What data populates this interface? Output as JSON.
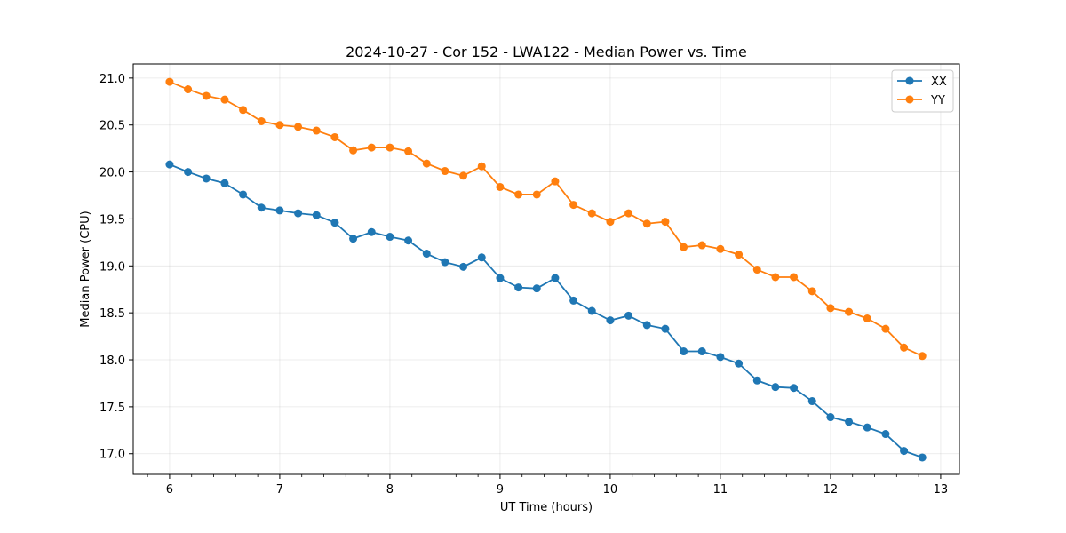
{
  "chart_data": {
    "type": "line",
    "title": "2024-10-27 - Cor 152 - LWA122 - Median Power vs. Time",
    "xlabel": "UT Time (hours)",
    "ylabel": "Median Power (CPU)",
    "xlim": [
      5.67,
      13.17
    ],
    "ylim": [
      16.78,
      21.15
    ],
    "xticks": [
      6,
      7,
      8,
      9,
      10,
      11,
      12,
      13
    ],
    "xtick_labels": [
      "6",
      "7",
      "8",
      "9",
      "10",
      "11",
      "12",
      "13"
    ],
    "yticks": [
      17.0,
      17.5,
      18.0,
      18.5,
      19.0,
      19.5,
      20.0,
      20.5,
      21.0
    ],
    "ytick_labels": [
      "17.0",
      "17.5",
      "18.0",
      "18.5",
      "19.0",
      "19.5",
      "20.0",
      "20.5",
      "21.0"
    ],
    "grid": true,
    "legend_position": "top-right",
    "x": [
      6.0,
      6.1667,
      6.3333,
      6.5,
      6.6667,
      6.8333,
      7.0,
      7.1667,
      7.3333,
      7.5,
      7.6667,
      7.8333,
      8.0,
      8.1667,
      8.3333,
      8.5,
      8.6667,
      8.8333,
      9.0,
      9.1667,
      9.3333,
      9.5,
      9.6667,
      9.8333,
      10.0,
      10.1667,
      10.3333,
      10.5,
      10.6667,
      10.8333,
      11.0,
      11.1667,
      11.3333,
      11.5,
      11.6667,
      11.8333,
      12.0,
      12.1667,
      12.3333,
      12.5,
      12.6667,
      12.8333
    ],
    "series": [
      {
        "name": "XX",
        "color": "#1f77b4",
        "values": [
          20.08,
          20.0,
          19.93,
          19.88,
          19.76,
          19.62,
          19.59,
          19.56,
          19.54,
          19.46,
          19.29,
          19.36,
          19.31,
          19.27,
          19.13,
          19.04,
          18.99,
          19.09,
          18.87,
          18.77,
          18.76,
          18.87,
          18.63,
          18.52,
          18.42,
          18.47,
          18.37,
          18.33,
          18.09,
          18.09,
          18.03,
          17.96,
          17.78,
          17.71,
          17.7,
          17.56,
          17.39,
          17.34,
          17.28,
          17.21,
          17.03,
          16.96
        ]
      },
      {
        "name": "YY",
        "color": "#ff7f0e",
        "values": [
          20.96,
          20.88,
          20.81,
          20.77,
          20.66,
          20.54,
          20.5,
          20.48,
          20.44,
          20.37,
          20.23,
          20.26,
          20.26,
          20.22,
          20.09,
          20.01,
          19.96,
          20.06,
          19.84,
          19.76,
          19.76,
          19.9,
          19.65,
          19.56,
          19.47,
          19.56,
          19.45,
          19.47,
          19.2,
          19.22,
          19.18,
          19.12,
          18.96,
          18.88,
          18.88,
          18.73,
          18.55,
          18.51,
          18.44,
          18.33,
          18.13,
          18.04
        ]
      }
    ]
  }
}
